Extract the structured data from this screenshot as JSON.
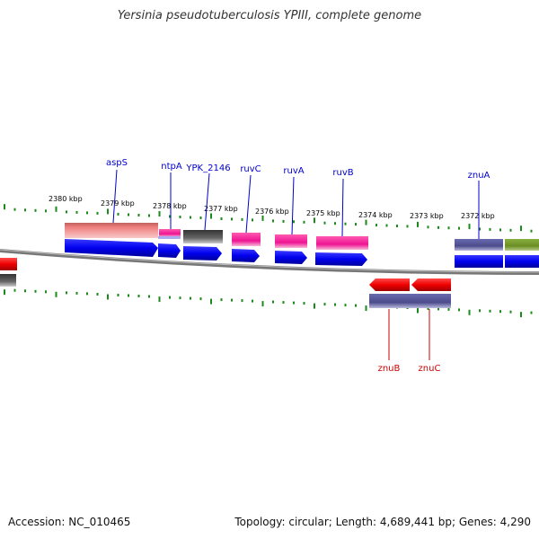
{
  "title": "Yersinia pseudotuberculosis YPIII, complete genome",
  "footer": {
    "accession": "Accession: NC_010465",
    "topology": "Topology: circular; Length: 4,689,441 bp; Genes: 4,290"
  },
  "colors": {
    "backbone": "#888888",
    "tick": "#1a8a1a",
    "cds_forward": "#0000ee",
    "cds_reverse": "#ee0000",
    "gene_label_forward": "#0000cc",
    "gene_label_reverse": "#cc0000",
    "coord_label": "#000000"
  },
  "coordinate_labels": [
    "2380 kbp",
    "2379 kbp",
    "2378 kbp",
    "2377 kbp",
    "2376 kbp",
    "2375 kbp",
    "2374 kbp",
    "2373 kbp",
    "2372 kbp"
  ],
  "forward_genes": [
    {
      "name": "aspS",
      "feature_color": "#f08080",
      "cds_color": "#0000ee"
    },
    {
      "name": "ntpA",
      "feature_color": "#ee1493",
      "cds_color": "#0000ee"
    },
    {
      "name": "YPK_2146",
      "feature_color": "#555555",
      "cds_color": "#0000ee"
    },
    {
      "name": "ruvC",
      "feature_color": "#ee1493",
      "cds_color": "#0000ee"
    },
    {
      "name": "ruvA",
      "feature_color": "#ee1493",
      "cds_color": "#0000ee"
    },
    {
      "name": "ruvB",
      "feature_color": "#ee1493",
      "cds_color": "#0000ee"
    },
    {
      "name": "znuA",
      "feature_color": "#4b4b8c",
      "cds_color": "#0000ee"
    }
  ],
  "reverse_genes": [
    {
      "name": "znuB",
      "feature_color": "#4b4b8c",
      "cds_color": "#ee0000"
    },
    {
      "name": "znuC",
      "feature_color": "#4b4b8c",
      "cds_color": "#ee0000"
    }
  ]
}
